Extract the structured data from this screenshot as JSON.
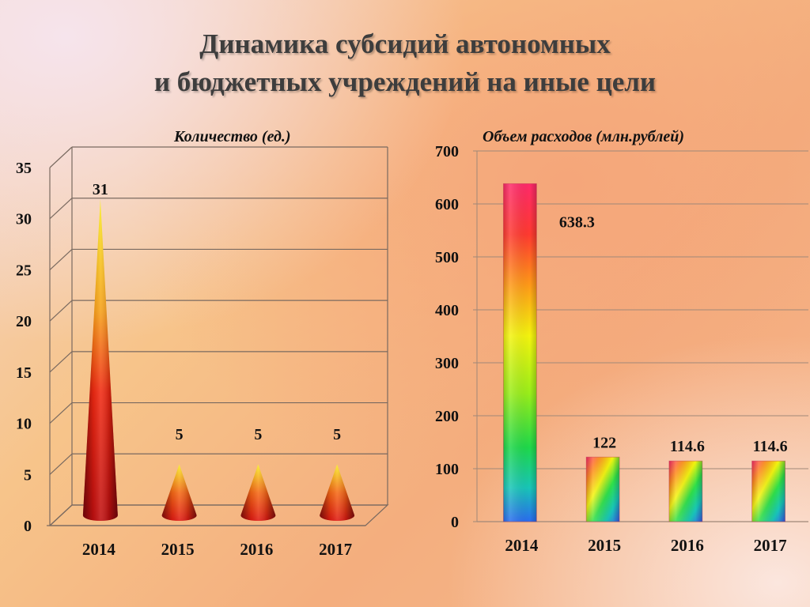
{
  "slide": {
    "title_line1": "Динамика субсидий  автономных",
    "title_line2": "и бюджетных учреждений  на иные цели"
  },
  "chart_data": [
    {
      "type": "bar",
      "style": "3d-cone",
      "title": "Количество (ед.)",
      "categories": [
        "2014",
        "2015",
        "2016",
        "2017"
      ],
      "values": [
        31,
        5,
        5,
        5
      ],
      "data_labels": [
        "31",
        "5",
        "5",
        "5"
      ],
      "ylim": [
        0,
        35
      ],
      "yticks": [
        "0",
        "5",
        "10",
        "15",
        "20",
        "25",
        "30",
        "35"
      ],
      "ytick_values": [
        0,
        5,
        10,
        15,
        20,
        25,
        30,
        35
      ],
      "grid": true,
      "colors": {
        "cone_tip": "#f7e21a",
        "cone_mid": "#f52a10",
        "cone_base": "#7a0c10"
      }
    },
    {
      "type": "bar",
      "style": "rainbow-column",
      "title": "Объем расходов (млн.рублей)",
      "categories": [
        "2014",
        "2015",
        "2016",
        "2017"
      ],
      "values": [
        638.3,
        122,
        114.6,
        114.6
      ],
      "data_labels": [
        "638.3",
        "122",
        "114.6",
        "114.6"
      ],
      "ylim": [
        0,
        700
      ],
      "yticks": [
        "0",
        "100",
        "200",
        "300",
        "400",
        "500",
        "600",
        "700"
      ],
      "ytick_values": [
        0,
        100,
        200,
        300,
        400,
        500,
        600,
        700
      ],
      "grid": true,
      "colors": {
        "red": "#ff2a5a",
        "yellow": "#f4f40e",
        "green": "#1ed94a",
        "blue": "#2a86f0"
      }
    }
  ]
}
